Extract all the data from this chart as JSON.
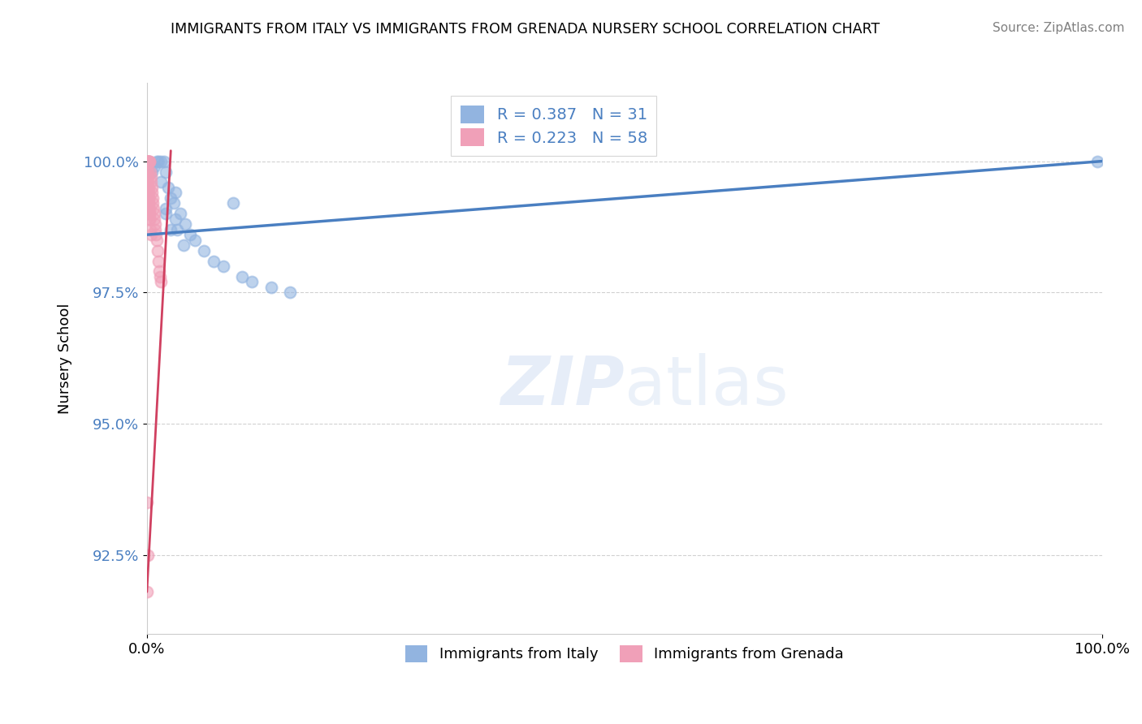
{
  "title": "IMMIGRANTS FROM ITALY VS IMMIGRANTS FROM GRENADA NURSERY SCHOOL CORRELATION CHART",
  "source": "Source: ZipAtlas.com",
  "ylabel": "Nursery School",
  "xlim": [
    0,
    100
  ],
  "ylim": [
    91.0,
    101.5
  ],
  "yticks": [
    92.5,
    95.0,
    97.5,
    100.0
  ],
  "xtick_labels": [
    "0.0%",
    "100.0%"
  ],
  "ytick_labels": [
    "92.5%",
    "95.0%",
    "97.5%",
    "100.0%"
  ],
  "italy_color": "#92b4e0",
  "grenada_color": "#f0a0b8",
  "italy_line_color": "#4a7fc1",
  "grenada_line_color": "#d04060",
  "italy_R": 0.387,
  "italy_N": 31,
  "grenada_R": 0.223,
  "grenada_N": 58,
  "legend_italy": "Immigrants from Italy",
  "legend_grenada": "Immigrants from Grenada",
  "italy_x": [
    0.5,
    0.8,
    1.0,
    1.2,
    1.5,
    1.8,
    2.0,
    2.2,
    2.5,
    2.8,
    3.0,
    3.5,
    4.0,
    5.0,
    6.0,
    7.0,
    8.0,
    9.0,
    10.0,
    11.0,
    13.0,
    15.0,
    3.0,
    3.2,
    3.8,
    4.5,
    2.0,
    2.5,
    1.5,
    2.0,
    99.5
  ],
  "italy_y": [
    99.8,
    99.9,
    100.0,
    100.0,
    100.0,
    100.0,
    99.8,
    99.5,
    99.3,
    99.2,
    99.4,
    99.0,
    98.8,
    98.5,
    98.3,
    98.1,
    98.0,
    99.2,
    97.8,
    97.7,
    97.6,
    97.5,
    98.9,
    98.7,
    98.4,
    98.6,
    99.1,
    98.7,
    99.6,
    99.0,
    100.0
  ],
  "grenada_x": [
    0.05,
    0.08,
    0.1,
    0.12,
    0.15,
    0.18,
    0.2,
    0.25,
    0.3,
    0.35,
    0.4,
    0.45,
    0.5,
    0.55,
    0.6,
    0.65,
    0.7,
    0.75,
    0.8,
    0.85,
    0.9,
    0.95,
    1.0,
    1.1,
    1.2,
    1.3,
    1.4,
    1.5,
    0.05,
    0.08,
    0.1,
    0.12,
    0.15,
    0.18,
    0.2,
    0.25,
    0.3,
    0.35,
    0.4,
    0.05,
    0.1,
    0.15,
    0.2,
    0.25,
    0.3,
    0.05,
    0.1,
    0.15,
    0.05,
    0.08,
    0.1,
    0.12,
    0.15,
    0.05,
    0.08,
    0.05,
    0.08,
    0.05
  ],
  "grenada_y": [
    100.0,
    100.0,
    100.0,
    100.0,
    100.0,
    100.0,
    100.0,
    100.0,
    100.0,
    99.8,
    99.7,
    99.6,
    99.5,
    99.4,
    99.3,
    99.2,
    99.1,
    99.0,
    98.9,
    98.8,
    98.7,
    98.6,
    98.5,
    98.3,
    98.1,
    97.9,
    97.8,
    97.7,
    99.9,
    99.8,
    99.5,
    99.4,
    99.3,
    99.2,
    99.1,
    99.0,
    98.9,
    98.7,
    98.6,
    99.6,
    99.5,
    99.4,
    99.3,
    99.1,
    98.9,
    99.7,
    99.6,
    99.5,
    99.4,
    99.3,
    99.2,
    99.1,
    99.0,
    99.8,
    99.7,
    93.5,
    92.5,
    91.8
  ],
  "italy_trend_x0": 0,
  "italy_trend_y0": 98.6,
  "italy_trend_x1": 100,
  "italy_trend_y1": 100.0,
  "grenada_trend_x0": 0,
  "grenada_trend_y0": 91.8,
  "grenada_trend_x1": 2.5,
  "grenada_trend_y1": 100.2
}
